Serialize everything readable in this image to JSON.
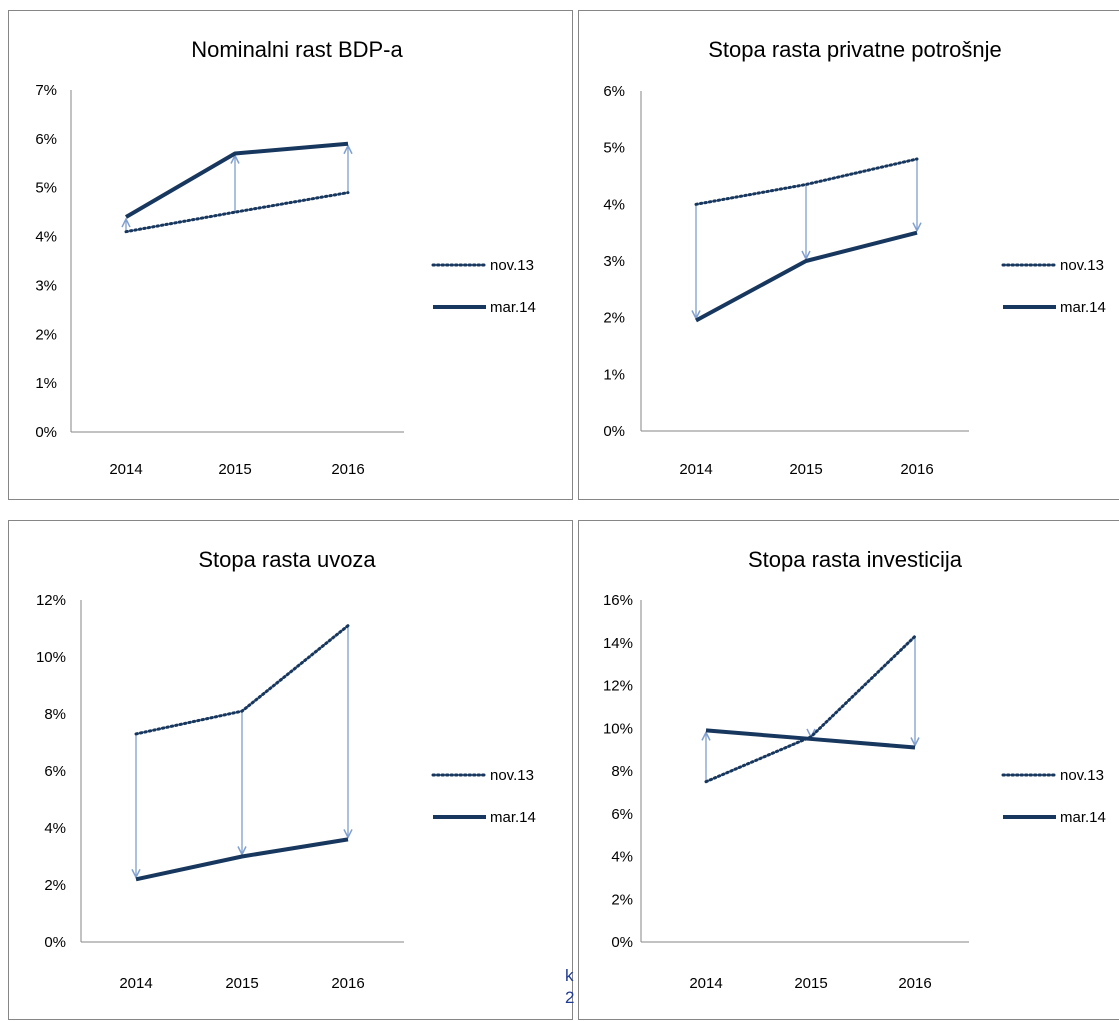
{
  "chart_data": [
    {
      "type": "line",
      "title": "Nominalni rast BDP-a",
      "categories": [
        "2014",
        "2015",
        "2016"
      ],
      "y_ticks": [
        "0%",
        "1%",
        "2%",
        "3%",
        "4%",
        "5%",
        "6%",
        "7%"
      ],
      "ylim": [
        0,
        7
      ],
      "series": [
        {
          "name": "nov.13",
          "values": [
            4.1,
            4.5,
            4.9
          ],
          "style": "dotted"
        },
        {
          "name": "mar.14",
          "values": [
            4.4,
            5.7,
            5.9
          ],
          "style": "solid"
        }
      ],
      "arrows": true,
      "legend_position": "right"
    },
    {
      "type": "line",
      "title": "Stopa rasta privatne potrošnje",
      "categories": [
        "2014",
        "2015",
        "2016"
      ],
      "y_ticks": [
        "0%",
        "1%",
        "2%",
        "3%",
        "4%",
        "5%",
        "6%"
      ],
      "ylim": [
        0,
        6
      ],
      "series": [
        {
          "name": "nov.13",
          "values": [
            4.0,
            4.35,
            4.8
          ],
          "style": "dotted"
        },
        {
          "name": "mar.14",
          "values": [
            1.95,
            3.0,
            3.5
          ],
          "style": "solid"
        }
      ],
      "arrows": true,
      "legend_position": "right"
    },
    {
      "type": "line",
      "title": "Stopa rasta uvoza",
      "categories": [
        "2014",
        "2015",
        "2016"
      ],
      "y_ticks": [
        "0%",
        "2%",
        "4%",
        "6%",
        "8%",
        "10%",
        "12%"
      ],
      "ylim": [
        0,
        12
      ],
      "series": [
        {
          "name": "nov.13",
          "values": [
            7.3,
            8.1,
            11.1
          ],
          "style": "dotted"
        },
        {
          "name": "mar.14",
          "values": [
            2.2,
            3.0,
            3.6
          ],
          "style": "solid"
        }
      ],
      "arrows": true,
      "legend_position": "right"
    },
    {
      "type": "line",
      "title": "Stopa rasta investicija",
      "categories": [
        "2014",
        "2015",
        "2016"
      ],
      "y_ticks": [
        "0%",
        "2%",
        "4%",
        "6%",
        "8%",
        "10%",
        "12%",
        "14%",
        "16%"
      ],
      "ylim": [
        0,
        16
      ],
      "series": [
        {
          "name": "nov.13",
          "values": [
            7.5,
            9.6,
            14.3
          ],
          "style": "dotted"
        },
        {
          "name": "mar.14",
          "values": [
            9.9,
            9.5,
            9.1
          ],
          "style": "solid"
        }
      ],
      "arrows": true,
      "legend_position": "right"
    }
  ],
  "colors": {
    "series_line": "#17375e",
    "arrow": "#7f9fcf",
    "axis": "#868686"
  },
  "stray_text": [
    "k",
    "2"
  ]
}
